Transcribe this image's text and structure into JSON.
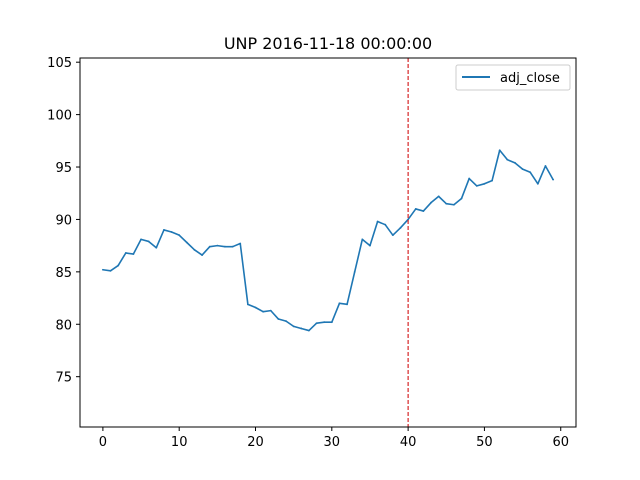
{
  "chart_data": {
    "type": "line",
    "title": "UNP 2016-11-18 00:00:00",
    "xlabel": "",
    "ylabel": "",
    "xlim": [
      -3,
      62
    ],
    "ylim": [
      70.2,
      105.4
    ],
    "x_ticks": [
      0,
      10,
      20,
      30,
      40,
      50,
      60
    ],
    "y_ticks": [
      75,
      80,
      85,
      90,
      95,
      100,
      105
    ],
    "grid": false,
    "legend_position": "top-right",
    "vline": {
      "x": 40,
      "color": "#d62728",
      "style": "dashed"
    },
    "series": [
      {
        "name": "adj_close",
        "color": "#1f77b4",
        "x": [
          0,
          1,
          2,
          3,
          4,
          5,
          6,
          7,
          8,
          9,
          10,
          11,
          12,
          13,
          14,
          15,
          16,
          17,
          18,
          19,
          20,
          21,
          22,
          23,
          24,
          25,
          26,
          27,
          28,
          29,
          30,
          31,
          32,
          33,
          34,
          35,
          36,
          37,
          38,
          39,
          40,
          41,
          42,
          43,
          44,
          45,
          46,
          47,
          48,
          49,
          50,
          51,
          52,
          53,
          54,
          55,
          56,
          57,
          58,
          59
        ],
        "values": [
          85.2,
          85.1,
          85.6,
          86.8,
          86.7,
          88.1,
          87.9,
          87.3,
          89.0,
          88.8,
          88.5,
          87.8,
          87.1,
          86.6,
          87.4,
          87.5,
          87.4,
          87.4,
          87.7,
          81.9,
          81.6,
          81.2,
          81.3,
          80.5,
          80.3,
          79.8,
          79.6,
          79.4,
          80.1,
          80.2,
          80.2,
          82.0,
          81.9,
          85.0,
          88.1,
          87.5,
          89.8,
          89.5,
          88.5,
          89.2,
          90.0,
          91.0,
          90.8,
          91.6,
          92.2,
          91.5,
          91.4,
          92.0,
          93.9,
          93.2,
          93.4,
          93.7,
          96.6,
          95.7,
          95.4,
          94.8,
          94.5,
          93.4,
          95.1,
          93.8
        ]
      }
    ]
  }
}
